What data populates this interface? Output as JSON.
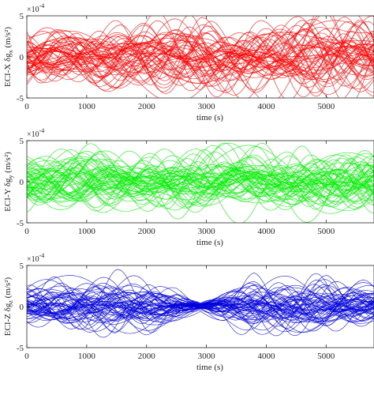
{
  "chart_data": [
    {
      "type": "line",
      "xlabel": "time (s)",
      "ylabel": "ECI-X δg",
      "ylabel_sub": "x",
      "ylabel_units": " (m/s²)",
      "exponent_base": "×10",
      "exponent": "-4",
      "xlim": [
        0,
        5800
      ],
      "ylim": [
        -5,
        5
      ],
      "xticks": [
        0,
        1000,
        2000,
        3000,
        4000,
        5000
      ],
      "xtick_labels": [
        "0",
        "1000",
        "2000",
        "3000",
        "4000",
        "5000"
      ],
      "yticks": [
        -5,
        0,
        5
      ],
      "ytick_labels": [
        "-5",
        "0",
        "5"
      ],
      "color": "#ff0000",
      "series_count": 60,
      "amplitude_envelope": [
        [
          0,
          3.5
        ],
        [
          600,
          3.0
        ],
        [
          1200,
          3.3
        ],
        [
          1800,
          3.1
        ],
        [
          2400,
          3.5
        ],
        [
          2900,
          3.9
        ],
        [
          3400,
          3.3
        ],
        [
          4000,
          3.2
        ],
        [
          4600,
          3.6
        ],
        [
          5200,
          3.9
        ],
        [
          5800,
          4.0
        ]
      ]
    },
    {
      "type": "line",
      "xlabel": "time (s)",
      "ylabel": "ECI-Y δg",
      "ylabel_sub": "y",
      "ylabel_units": " (m/s²)",
      "exponent_base": "×10",
      "exponent": "-4",
      "xlim": [
        0,
        5800
      ],
      "ylim": [
        -5,
        5
      ],
      "xticks": [
        0,
        1000,
        2000,
        3000,
        4000,
        5000
      ],
      "xtick_labels": [
        "0",
        "1000",
        "2000",
        "3000",
        "4000",
        "5000"
      ],
      "yticks": [
        -5,
        0,
        5
      ],
      "ytick_labels": [
        "-5",
        "0",
        "5"
      ],
      "color": "#00ee00",
      "series_count": 60,
      "amplitude_envelope": [
        [
          0,
          3.0
        ],
        [
          600,
          2.8
        ],
        [
          1200,
          3.0
        ],
        [
          1800,
          2.7
        ],
        [
          2400,
          2.9
        ],
        [
          3000,
          3.0
        ],
        [
          3600,
          2.9
        ],
        [
          4200,
          2.7
        ],
        [
          4800,
          3.0
        ],
        [
          5400,
          3.2
        ],
        [
          5800,
          3.3
        ]
      ]
    },
    {
      "type": "line",
      "xlabel": "time (s)",
      "ylabel": "ECI-Z δg",
      "ylabel_sub": "z",
      "ylabel_units": " (m/s²)",
      "exponent_base": "×10",
      "exponent": "-4",
      "xlim": [
        0,
        5800
      ],
      "ylim": [
        -5,
        5
      ],
      "xticks": [
        0,
        1000,
        2000,
        3000,
        4000,
        5000
      ],
      "xtick_labels": [
        "0",
        "1000",
        "2000",
        "3000",
        "4000",
        "5000"
      ],
      "yticks": [
        -5,
        0,
        5
      ],
      "ytick_labels": [
        "-5",
        "0",
        "5"
      ],
      "color": "#0000dd",
      "series_count": 60,
      "amplitude_envelope": [
        [
          0,
          2.0
        ],
        [
          500,
          2.3
        ],
        [
          1000,
          2.5
        ],
        [
          1500,
          2.7
        ],
        [
          2000,
          2.4
        ],
        [
          2500,
          1.6
        ],
        [
          2900,
          0.4
        ],
        [
          3300,
          1.6
        ],
        [
          3800,
          2.5
        ],
        [
          4400,
          2.6
        ],
        [
          5000,
          2.4
        ],
        [
          5500,
          2.1
        ],
        [
          5800,
          2.0
        ]
      ]
    }
  ]
}
